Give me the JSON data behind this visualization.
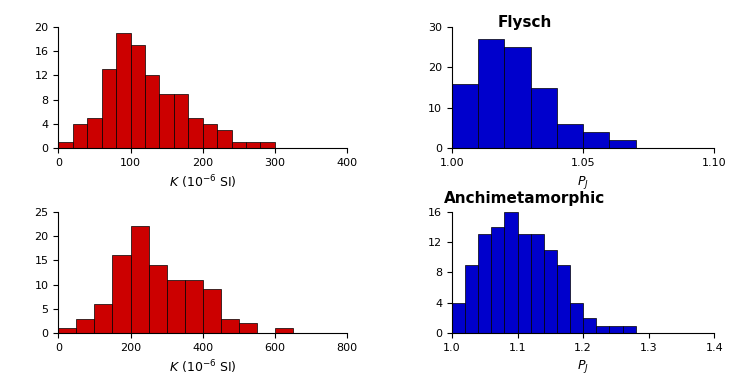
{
  "flysch_K": {
    "bins": [
      0,
      20,
      40,
      60,
      80,
      100,
      120,
      140,
      160,
      180,
      200,
      220,
      240,
      260,
      280,
      300,
      320,
      340,
      360,
      380,
      400
    ],
    "counts": [
      1,
      4,
      5,
      13,
      19,
      17,
      12,
      9,
      9,
      5,
      4,
      3,
      1,
      1,
      1,
      0,
      0,
      0,
      0,
      0
    ],
    "color": "#CC0000",
    "yticks": [
      0,
      4,
      8,
      12,
      16,
      20
    ],
    "xlim": [
      0,
      400
    ],
    "ylim": [
      0,
      20
    ],
    "xticks": [
      0,
      100,
      200,
      300,
      400
    ]
  },
  "flysch_PJ": {
    "bins": [
      1.0,
      1.01,
      1.02,
      1.03,
      1.04,
      1.05,
      1.06,
      1.07,
      1.08,
      1.09,
      1.1
    ],
    "counts": [
      16,
      27,
      25,
      15,
      6,
      4,
      2,
      0,
      0,
      0
    ],
    "color": "#0000CC",
    "xlim": [
      1.0,
      1.1
    ],
    "ylim": [
      0,
      30
    ],
    "yticks": [
      0,
      10,
      20,
      30
    ],
    "xticks": [
      1.0,
      1.05,
      1.1
    ]
  },
  "anchi_K": {
    "bins": [
      0,
      50,
      100,
      150,
      200,
      250,
      300,
      350,
      400,
      450,
      500,
      550,
      600,
      650,
      700,
      750,
      800
    ],
    "counts": [
      1,
      3,
      6,
      16,
      22,
      14,
      11,
      11,
      9,
      3,
      2,
      0,
      1,
      0,
      0,
      0
    ],
    "color": "#CC0000",
    "xlim": [
      0,
      800
    ],
    "ylim": [
      0,
      25
    ],
    "yticks": [
      0,
      5,
      10,
      15,
      20,
      25
    ],
    "xticks": [
      0,
      200,
      400,
      600,
      800
    ]
  },
  "anchi_PJ": {
    "bins": [
      1.0,
      1.02,
      1.04,
      1.06,
      1.08,
      1.1,
      1.12,
      1.14,
      1.16,
      1.18,
      1.2,
      1.22,
      1.24,
      1.26,
      1.28,
      1.3,
      1.32,
      1.34,
      1.36,
      1.38,
      1.4
    ],
    "counts": [
      4,
      9,
      13,
      14,
      16,
      13,
      13,
      11,
      9,
      4,
      2,
      1,
      1,
      1,
      0,
      0,
      0,
      0,
      0,
      0
    ],
    "color": "#0000CC",
    "xlim": [
      1.0,
      1.4
    ],
    "ylim": [
      0,
      16
    ],
    "yticks": [
      0,
      4,
      8,
      12,
      16
    ],
    "xticks": [
      1.0,
      1.1,
      1.2,
      1.3,
      1.4
    ]
  },
  "title_flysch": "Flysch",
  "title_anchi": "Anchimetamorphic",
  "background_color": "#FFFFFF"
}
